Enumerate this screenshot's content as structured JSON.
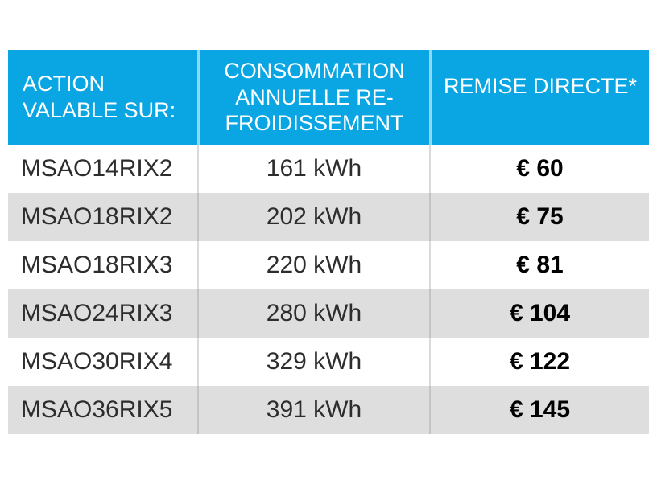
{
  "table": {
    "header": {
      "action": "ACTION\nVALABLE SUR:",
      "consumption": "CONSOMMATION\nANNUELLE RE-\nFROIDISSEMENT",
      "remise": "REMISE DIRECTE*"
    },
    "rows": [
      {
        "model": "MSAO14RIX2",
        "consumption": "161 kWh",
        "remise": "€ 60"
      },
      {
        "model": "MSAO18RIX2",
        "consumption": "202 kWh",
        "remise": "€ 75"
      },
      {
        "model": "MSAO18RIX3",
        "consumption": "220 kWh",
        "remise": "€ 81"
      },
      {
        "model": "MSAO24RIX3",
        "consumption": "280 kWh",
        "remise": "€ 104"
      },
      {
        "model": "MSAO30RIX4",
        "consumption": "329 kWh",
        "remise": "€ 122"
      },
      {
        "model": "MSAO36RIX5",
        "consumption": "391 kWh",
        "remise": "€ 145"
      }
    ]
  },
  "colors": {
    "header_background": "#0aa6e4",
    "header_text": "#ffffff",
    "row_alt_background": "#dedede",
    "body_text": "#2d2d2d",
    "remise_text": "#000000"
  }
}
